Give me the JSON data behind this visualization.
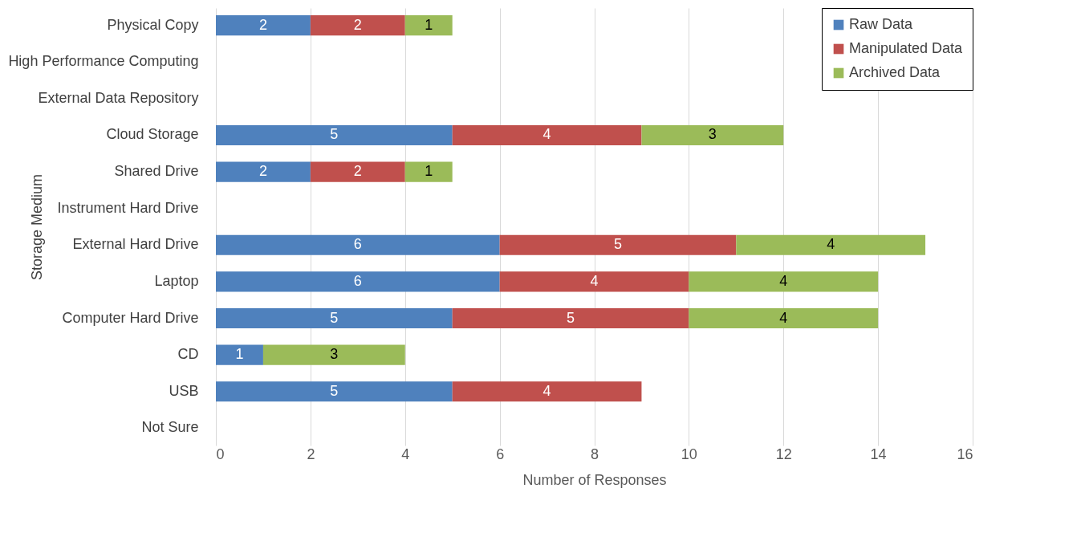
{
  "chart_data": {
    "type": "bar",
    "orientation": "horizontal",
    "stacked": true,
    "categories": [
      "Physical Copy",
      "High Performance Computing",
      "External Data Repository",
      "Cloud Storage",
      "Shared Drive",
      "Instrument Hard Drive",
      "External Hard Drive",
      "Laptop",
      "Computer Hard Drive",
      "CD",
      "USB",
      "Not Sure"
    ],
    "series": [
      {
        "name": "Raw Data",
        "color": "#4f81bd",
        "values": [
          2,
          null,
          null,
          5,
          2,
          null,
          6,
          6,
          5,
          1,
          5,
          null
        ]
      },
      {
        "name": "Manipulated Data",
        "color": "#c0504d",
        "values": [
          2,
          null,
          null,
          4,
          2,
          null,
          5,
          4,
          5,
          null,
          4,
          null
        ]
      },
      {
        "name": "Archived Data",
        "color": "#9bbb59",
        "values": [
          1,
          null,
          null,
          3,
          1,
          null,
          4,
          4,
          4,
          3,
          null,
          null
        ]
      }
    ],
    "xlim": [
      0,
      16
    ],
    "xticks": [
      0,
      2,
      4,
      6,
      8,
      10,
      12,
      14,
      16
    ],
    "xlabel": "Number of Responses",
    "ylabel": "Storage Medium",
    "grid": "x",
    "legend": "top right",
    "data_labels": true
  }
}
